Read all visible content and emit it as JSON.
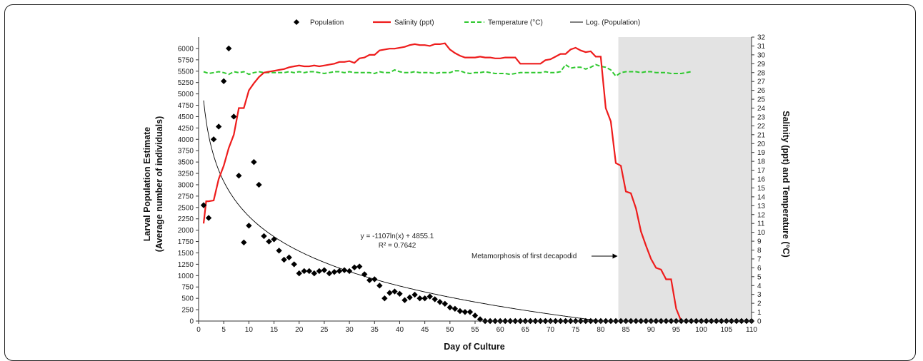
{
  "chart_data": {
    "type": "scatter",
    "legend": {
      "placement": "top",
      "entries": [
        {
          "name": "Population",
          "color": "#000000",
          "marker": "diamond"
        },
        {
          "name": "Salinity (ppt)",
          "color": "#ee1c1c",
          "marker": "line"
        },
        {
          "name": "Temperature (°C)",
          "color": "#2ec82e",
          "marker": "dashed-line"
        },
        {
          "name": "Log. (Population)",
          "color": "#000000",
          "marker": "thin-line"
        }
      ]
    },
    "xlabel": "Day of Culture",
    "ylabel_left": [
      "Larval Population Estimate",
      "(Average number of individuals)"
    ],
    "ylabel_right": "Salinity (ppt) and Temperature  (°C)",
    "xlim": [
      0,
      110
    ],
    "ylim_left": [
      0,
      6250
    ],
    "ylim_right": [
      0,
      32
    ],
    "x_ticks": [
      0,
      5,
      10,
      15,
      20,
      25,
      30,
      35,
      40,
      45,
      50,
      55,
      60,
      65,
      70,
      75,
      80,
      85,
      90,
      95,
      100,
      105,
      110
    ],
    "y_left_ticks": [
      0,
      250,
      500,
      750,
      1000,
      1250,
      1500,
      1750,
      2000,
      2250,
      2500,
      2750,
      3000,
      3250,
      3500,
      3750,
      4000,
      4250,
      4500,
      4750,
      5000,
      5250,
      5500,
      5750,
      6000
    ],
    "y_right_ticks": [
      0,
      1,
      2,
      3,
      4,
      5,
      6,
      7,
      8,
      9,
      10,
      11,
      12,
      13,
      14,
      15,
      16,
      17,
      18,
      19,
      20,
      21,
      22,
      23,
      24,
      25,
      26,
      27,
      28,
      29,
      30,
      31,
      32
    ],
    "shaded_region": {
      "x_start": 83.5,
      "x_end": 110,
      "color": "#e3e3e3"
    },
    "annotations": {
      "equation": "y = -1107ln(x) + 4855.1",
      "r_squared": "R² = 0.7642",
      "metamorphosis": "Metamorphosis of first decapodid"
    },
    "trendline": {
      "type": "logarithmic",
      "a": -1107,
      "b": 4855.1,
      "x_range": [
        1,
        96
      ]
    },
    "population": {
      "x": [
        1,
        2,
        3,
        4,
        5,
        6,
        7,
        8,
        9,
        10,
        11,
        12,
        13,
        14,
        15,
        16,
        17,
        18,
        19,
        20,
        21,
        22,
        23,
        24,
        25,
        26,
        27,
        28,
        29,
        30,
        31,
        32,
        33,
        34,
        35,
        36,
        37,
        38,
        39,
        40,
        41,
        42,
        43,
        44,
        45,
        46,
        47,
        48,
        49,
        50,
        51,
        52,
        53,
        54,
        55,
        56,
        57,
        58,
        59,
        60,
        61,
        62,
        63,
        64,
        65,
        66,
        67,
        68,
        69,
        70,
        71,
        72,
        73,
        74,
        75,
        76,
        77,
        78,
        79,
        80,
        81,
        82,
        83,
        84,
        85,
        86,
        87,
        88,
        89,
        90,
        91,
        92,
        93,
        94,
        95,
        96,
        97,
        98,
        99,
        100,
        101,
        102,
        103,
        104,
        105,
        106,
        107,
        108,
        109,
        110
      ],
      "y": [
        2550,
        2270,
        4000,
        4280,
        5280,
        6000,
        4500,
        3200,
        1730,
        2100,
        3500,
        3000,
        1870,
        1750,
        1800,
        1550,
        1350,
        1400,
        1250,
        1050,
        1100,
        1100,
        1050,
        1100,
        1120,
        1050,
        1080,
        1100,
        1120,
        1100,
        1180,
        1200,
        1030,
        900,
        920,
        780,
        500,
        620,
        650,
        600,
        460,
        520,
        580,
        500,
        500,
        540,
        480,
        420,
        380,
        300,
        270,
        220,
        200,
        200,
        120,
        40,
        0,
        0,
        0,
        0,
        0,
        0,
        0,
        0,
        0,
        0,
        0,
        0,
        0,
        0,
        0,
        0,
        0,
        0,
        0,
        0,
        0,
        0,
        0,
        0,
        0,
        0,
        0,
        0,
        0,
        0,
        0,
        0,
        0,
        0,
        0,
        0,
        0,
        0,
        0,
        0,
        0,
        0,
        0,
        0,
        0,
        0,
        0,
        0,
        0,
        0,
        0,
        0,
        0,
        0
      ]
    },
    "salinity": {
      "x": [
        1,
        1.5,
        2,
        3,
        4,
        5,
        6,
        7,
        7.5,
        8,
        9,
        10,
        11,
        12,
        13,
        14,
        15,
        16,
        17,
        18,
        19,
        20,
        21,
        22,
        23,
        24,
        25,
        26,
        27,
        28,
        29,
        30,
        31,
        32,
        33,
        34,
        35,
        36,
        37,
        38,
        39,
        40,
        41,
        42,
        43,
        44,
        45,
        46,
        47,
        48,
        49,
        50,
        51,
        52,
        53,
        54,
        55,
        56,
        57,
        58,
        59,
        60,
        61,
        62,
        63,
        64,
        65,
        66,
        67,
        68,
        69,
        70,
        71,
        72,
        73,
        74,
        75,
        76,
        77,
        78,
        79,
        80,
        81,
        82,
        83,
        84,
        85,
        86,
        87,
        88,
        89,
        90,
        91,
        92,
        93,
        94,
        95,
        96
      ],
      "y": [
        11,
        13.5,
        13.5,
        13.6,
        16,
        17.5,
        19.5,
        21,
        22.5,
        24,
        24,
        26,
        26.8,
        27.5,
        28,
        28.1,
        28.2,
        28.3,
        28.4,
        28.6,
        28.7,
        28.8,
        28.7,
        28.7,
        28.8,
        28.7,
        28.8,
        28.9,
        29,
        29.2,
        29.2,
        29.3,
        29.1,
        29.6,
        29.7,
        30,
        30,
        30.5,
        30.6,
        30.7,
        30.7,
        30.8,
        30.9,
        31.1,
        31.2,
        31.1,
        31.1,
        31,
        31.2,
        31.2,
        31.3,
        30.6,
        30.2,
        29.9,
        29.7,
        29.7,
        29.7,
        29.8,
        29.7,
        29.7,
        29.6,
        29.6,
        29.7,
        29.7,
        29.7,
        29,
        29,
        29,
        29,
        29,
        29.4,
        29.5,
        29.8,
        30.1,
        30.1,
        30.6,
        30.8,
        30.5,
        30.3,
        30.4,
        29.8,
        29.8,
        24,
        22.5,
        17.8,
        17.5,
        14.6,
        14.4,
        12.7,
        10.1,
        8.5,
        7,
        6,
        5.8,
        4.7,
        4.7,
        1.4,
        0
      ]
    },
    "temperature": {
      "x": [
        1,
        2,
        3,
        4,
        5,
        6,
        7,
        8,
        9,
        10,
        11,
        12,
        13,
        14,
        15,
        16,
        17,
        18,
        19,
        20,
        21,
        22,
        23,
        24,
        25,
        26,
        27,
        28,
        29,
        30,
        31,
        32,
        33,
        34,
        35,
        36,
        37,
        38,
        39,
        40,
        41,
        42,
        43,
        44,
        45,
        46,
        47,
        48,
        49,
        50,
        51,
        52,
        53,
        54,
        55,
        56,
        57,
        58,
        59,
        60,
        61,
        62,
        63,
        64,
        65,
        66,
        67,
        68,
        69,
        70,
        71,
        72,
        73,
        74,
        75,
        76,
        77,
        78,
        79,
        80,
        81,
        82,
        83,
        84,
        85,
        86,
        87,
        88,
        89,
        90,
        91,
        92,
        93,
        94,
        95,
        96,
        97,
        98
      ],
      "y": [
        28.1,
        27.9,
        28.0,
        28.1,
        28.0,
        27.8,
        28.1,
        28.0,
        28.1,
        27.8,
        28.0,
        28.1,
        28.0,
        28.0,
        28.0,
        28.0,
        28.0,
        28.1,
        28.0,
        28.1,
        28.0,
        28.1,
        28.1,
        28.0,
        27.9,
        28.0,
        28.1,
        28.1,
        28.0,
        28.1,
        28.0,
        28.0,
        28.0,
        28.0,
        27.9,
        28.1,
        28.0,
        28.0,
        28.3,
        28.1,
        28.0,
        28.0,
        28.1,
        28.0,
        28.0,
        28.0,
        27.9,
        28.0,
        28.0,
        28.0,
        28.2,
        28.2,
        28.0,
        27.9,
        28.0,
        28.0,
        28.1,
        28.0,
        27.9,
        27.9,
        27.9,
        27.8,
        27.9,
        28.0,
        28.0,
        28.0,
        28.0,
        28.0,
        28.1,
        28.0,
        28.0,
        28.1,
        28.9,
        28.5,
        28.6,
        28.6,
        28.4,
        28.6,
        28.9,
        28.7,
        28.6,
        28.3,
        27.6,
        28.0,
        28.1,
        28.1,
        28.1,
        28.0,
        28.1,
        28.1,
        28.0,
        28.0,
        28.0,
        27.9,
        27.9,
        27.9,
        28.0,
        28.1
      ]
    }
  }
}
